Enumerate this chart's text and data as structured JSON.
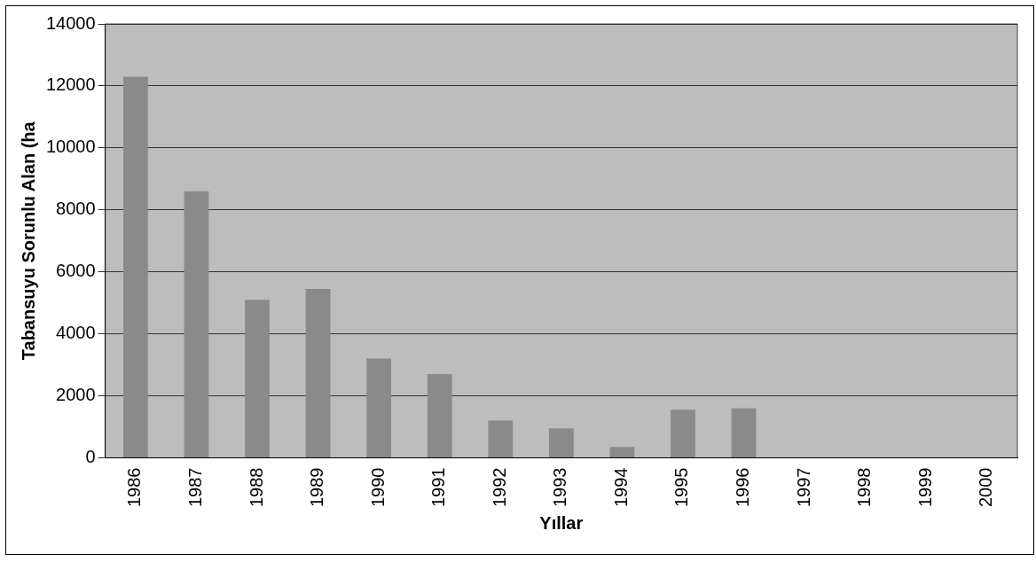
{
  "chart_data": {
    "type": "bar",
    "xlabel": "Yıllar",
    "ylabel": "Tabansuyu Sorunlu Alan (ha",
    "categories": [
      "1986",
      "1987",
      "1988",
      "1989",
      "1990",
      "1991",
      "1992",
      "1993",
      "1994",
      "1995",
      "1996",
      "1997",
      "1998",
      "1999",
      "2000"
    ],
    "values": [
      12300,
      8600,
      5100,
      5450,
      3200,
      2700,
      1200,
      950,
      350,
      1550,
      1600,
      null,
      null,
      null,
      null
    ],
    "color": "#8a8a8a",
    "ylim": [
      0,
      14000
    ],
    "yticks": [
      0,
      2000,
      4000,
      6000,
      8000,
      10000,
      12000,
      14000
    ],
    "grid": "y",
    "legend": false
  }
}
